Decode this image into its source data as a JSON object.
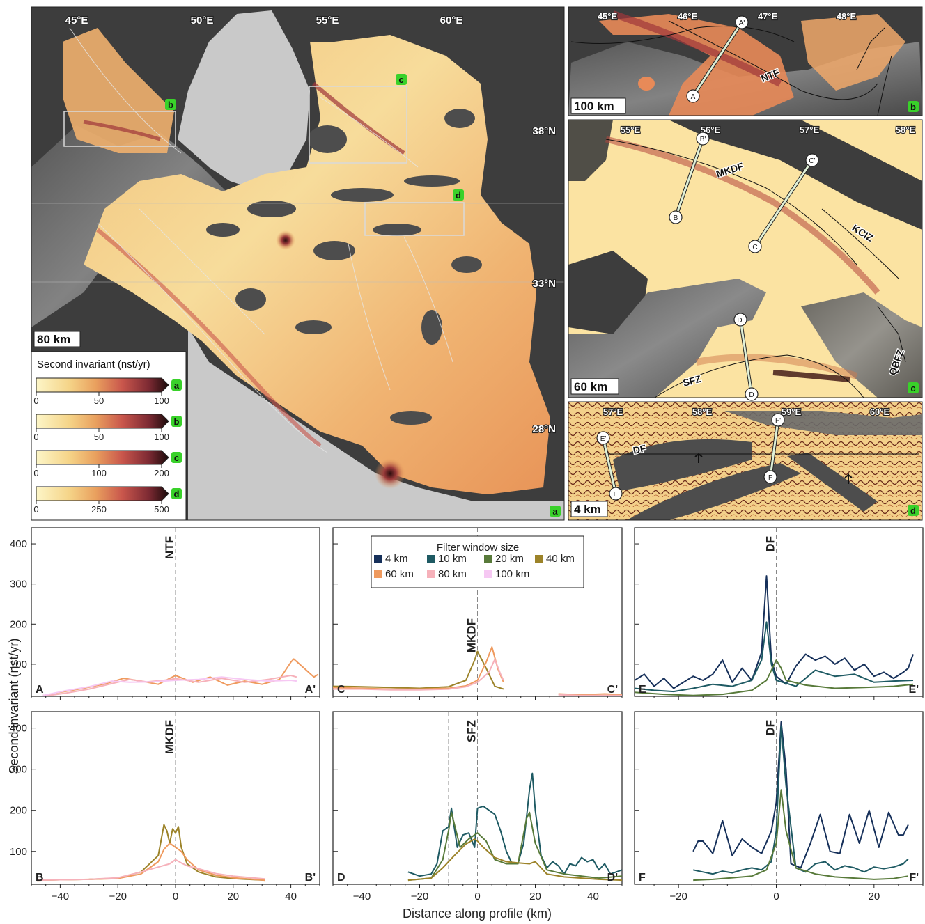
{
  "maps": {
    "a": {
      "lon_labels": [
        "45°E",
        "50°E",
        "55°E",
        "60°E"
      ],
      "lat_labels": [
        "38°N",
        "33°N",
        "28°N"
      ],
      "scale": "80 km",
      "tag": "a",
      "box_tags": [
        "b",
        "c",
        "d"
      ]
    },
    "b": {
      "lon_labels": [
        "45°E",
        "46°E",
        "47°E",
        "48°E"
      ],
      "faults": [
        "NTF"
      ],
      "profile_ends": [
        "A",
        "A'"
      ],
      "scale": "100 km",
      "tag": "b"
    },
    "c": {
      "lon_labels": [
        "55°E",
        "56°E",
        "57°E",
        "58°E"
      ],
      "faults": [
        "MKDF",
        "KCIZ",
        "SFZ",
        "QBFZ"
      ],
      "profile_ends": [
        "B",
        "B'",
        "C",
        "C'",
        "D",
        "D'"
      ],
      "scale": "60 km",
      "tag": "c"
    },
    "d": {
      "lon_labels": [
        "57°E",
        "58°E",
        "59°E",
        "60°E"
      ],
      "faults": [
        "DF"
      ],
      "profile_ends": [
        "E",
        "E'",
        "F",
        "F'"
      ],
      "scale": "4 km",
      "tag": "d"
    }
  },
  "colorbars": {
    "title": "Second invariant (nst/yr)",
    "bars": [
      {
        "tag": "a",
        "ticks": [
          "0",
          "50",
          "100"
        ],
        "max": 100
      },
      {
        "tag": "b",
        "ticks": [
          "0",
          "50",
          "100"
        ],
        "max": 100
      },
      {
        "tag": "c",
        "ticks": [
          "0",
          "100",
          "200"
        ],
        "max": 200
      },
      {
        "tag": "d",
        "ticks": [
          "0",
          "250",
          "500"
        ],
        "max": 500
      }
    ],
    "colors": [
      "#fdf6c8",
      "#f5d488",
      "#e9a05e",
      "#c9564c",
      "#7d2a33",
      "#1a0a0a"
    ]
  },
  "legend": {
    "title": "Filter window size",
    "entries": [
      {
        "label": "4 km",
        "color": "#16305a"
      },
      {
        "label": "10 km",
        "color": "#1e5a63"
      },
      {
        "label": "20 km",
        "color": "#587a3a"
      },
      {
        "label": "40 km",
        "color": "#9c8329"
      },
      {
        "label": "60 km",
        "color": "#ef9a5e"
      },
      {
        "label": "80 km",
        "color": "#f6b1ba"
      },
      {
        "label": "100 km",
        "color": "#f6c8f3"
      }
    ]
  },
  "y_axis_label": "Second invariant (nst/yr)",
  "x_axis_label": "Distance along profile (km)",
  "chart_data": [
    {
      "type": "line",
      "panel": "A-A'",
      "fault": "NTF",
      "start_label": "A",
      "end_label": "A'",
      "xlim": [
        -50,
        50
      ],
      "ylim": [
        20,
        440
      ],
      "xticks": [
        -40,
        -20,
        0,
        20,
        40
      ],
      "yticks": [
        100,
        200,
        300,
        400
      ],
      "fault_lines": [
        0
      ],
      "series": [
        {
          "color": "#ef9a5e",
          "x": [
            -46,
            -40,
            -32,
            -24,
            -18,
            -12,
            -6,
            0,
            6,
            12,
            18,
            24,
            30,
            36,
            40,
            41,
            48,
            49.5
          ],
          "y": [
            22,
            30,
            40,
            52,
            65,
            58,
            50,
            72,
            55,
            68,
            48,
            58,
            50,
            62,
            105,
            113,
            68,
            75
          ]
        },
        {
          "color": "#f6b1ba",
          "x": [
            -46,
            -38,
            -30,
            -22,
            -16,
            -10,
            -4,
            0,
            8,
            16,
            24,
            32,
            40,
            42
          ],
          "y": [
            20,
            28,
            38,
            52,
            62,
            56,
            60,
            64,
            55,
            65,
            55,
            62,
            72,
            68
          ]
        },
        {
          "color": "#f6c8f3",
          "x": [
            -46,
            -38,
            -30,
            -22,
            -16,
            -8,
            0,
            8,
            16,
            24,
            32,
            40,
            42
          ],
          "y": [
            22,
            34,
            44,
            58,
            55,
            56,
            60,
            62,
            68,
            62,
            58,
            60,
            58
          ]
        }
      ]
    },
    {
      "type": "line",
      "panel": "C-C'",
      "fault": "MKDF",
      "start_label": "C",
      "end_label": "C'",
      "xlim": [
        -50,
        50
      ],
      "ylim": [
        20,
        440
      ],
      "xticks": [
        -40,
        -20,
        0,
        20,
        40
      ],
      "yticks": [
        100,
        200,
        300,
        400
      ],
      "fault_lines": [
        0
      ],
      "series": [
        {
          "color": "#9c8329",
          "x": [
            -50,
            -40,
            -30,
            -20,
            -10,
            -4,
            -1,
            0,
            3,
            6,
            9
          ],
          "y": [
            45,
            44,
            42,
            40,
            44,
            60,
            110,
            132,
            90,
            45,
            38
          ]
        },
        {
          "color": "#ef9a5e",
          "x": [
            -50,
            -40,
            -30,
            -20,
            -10,
            -4,
            0,
            3,
            5,
            7,
            9
          ],
          "y": [
            42,
            40,
            38,
            38,
            40,
            46,
            60,
            105,
            143,
            90,
            55
          ]
        },
        {
          "color": "#f6b1ba",
          "x": [
            -50,
            -40,
            -30,
            -20,
            -10,
            -4,
            0,
            4,
            6,
            8,
            9
          ],
          "y": [
            38,
            38,
            36,
            36,
            38,
            44,
            55,
            80,
            112,
            75,
            60
          ]
        },
        {
          "color": "#ef9a5e",
          "x": [
            28,
            36,
            44,
            50
          ],
          "y": [
            26,
            24,
            26,
            24
          ]
        },
        {
          "color": "#f6b1ba",
          "x": [
            28,
            36,
            44,
            50
          ],
          "y": [
            24,
            22,
            22,
            22
          ]
        }
      ]
    },
    {
      "type": "line",
      "panel": "E-E'",
      "fault": "DF",
      "start_label": "E",
      "end_label": "E'",
      "xlim": [
        -29,
        30
      ],
      "ylim": [
        20,
        440
      ],
      "xticks": [
        -20,
        0,
        20
      ],
      "yticks": [
        100,
        200,
        300,
        400
      ],
      "fault_lines": [
        0
      ],
      "series": [
        {
          "color": "#16305a",
          "x": [
            -29,
            -27,
            -25,
            -23,
            -21,
            -19,
            -17,
            -15,
            -13,
            -11,
            -9,
            -7,
            -5,
            -3,
            -2,
            -1,
            0,
            2,
            4,
            6,
            8,
            10,
            12,
            14,
            16,
            18,
            20,
            22,
            24,
            26,
            27,
            28
          ],
          "y": [
            60,
            75,
            45,
            65,
            40,
            55,
            70,
            60,
            75,
            110,
            55,
            90,
            60,
            130,
            320,
            110,
            70,
            50,
            95,
            125,
            110,
            120,
            100,
            115,
            85,
            100,
            70,
            80,
            65,
            80,
            90,
            125
          ]
        },
        {
          "color": "#1e5a63",
          "x": [
            -29,
            -25,
            -21,
            -17,
            -13,
            -9,
            -5,
            -3,
            -2,
            -1,
            0,
            4,
            8,
            12,
            16,
            20,
            24,
            28
          ],
          "y": [
            40,
            35,
            32,
            40,
            50,
            45,
            60,
            110,
            205,
            100,
            60,
            45,
            85,
            70,
            75,
            55,
            58,
            60
          ]
        },
        {
          "color": "#587a3a",
          "x": [
            -29,
            -23,
            -17,
            -11,
            -5,
            -2,
            0,
            1,
            2,
            6,
            12,
            18,
            24,
            28
          ],
          "y": [
            30,
            25,
            22,
            25,
            35,
            60,
            110,
            90,
            60,
            48,
            40,
            42,
            45,
            50
          ]
        }
      ]
    },
    {
      "type": "line",
      "panel": "B-B'",
      "fault": "MKDF",
      "start_label": "B",
      "end_label": "B'",
      "xlim": [
        -50,
        50
      ],
      "ylim": [
        20,
        440
      ],
      "xticks": [
        -40,
        -20,
        0,
        20,
        40
      ],
      "yticks": [
        100,
        200,
        300,
        400
      ],
      "fault_lines": [
        0
      ],
      "series": [
        {
          "color": "#9c8329",
          "x": [
            -48,
            -40,
            -30,
            -20,
            -12,
            -6,
            -4,
            -3,
            -2,
            -1,
            0,
            1,
            2,
            4,
            8,
            14,
            20,
            31
          ],
          "y": [
            30,
            31,
            32,
            35,
            50,
            90,
            165,
            150,
            120,
            155,
            145,
            160,
            110,
            70,
            50,
            38,
            34,
            30
          ]
        },
        {
          "color": "#ef9a5e",
          "x": [
            -48,
            -40,
            -30,
            -20,
            -12,
            -6,
            -4,
            -2,
            0,
            2,
            4,
            8,
            14,
            20,
            31
          ],
          "y": [
            30,
            31,
            32,
            34,
            45,
            75,
            105,
            120,
            110,
            100,
            80,
            55,
            42,
            36,
            30
          ]
        },
        {
          "color": "#f6b1ba",
          "x": [
            -48,
            -40,
            -30,
            -20,
            -12,
            -6,
            -2,
            0,
            2,
            4,
            8,
            14,
            20,
            31
          ],
          "y": [
            30,
            31,
            32,
            36,
            50,
            62,
            70,
            80,
            72,
            65,
            58,
            46,
            40,
            33
          ]
        }
      ]
    },
    {
      "type": "line",
      "panel": "D-D'",
      "fault": "SFZ",
      "start_label": "D",
      "end_label": "D'",
      "xlim": [
        -50,
        50
      ],
      "ylim": [
        20,
        440
      ],
      "xticks": [
        -40,
        -20,
        0,
        20,
        40
      ],
      "yticks": [
        100,
        200,
        300,
        400
      ],
      "fault_lines": [
        -10,
        0
      ],
      "series": [
        {
          "color": "#1e5a63",
          "x": [
            -24,
            -20,
            -16,
            -14,
            -12,
            -10,
            -9,
            -7,
            -5,
            -3,
            -1,
            0,
            2,
            4,
            6,
            8,
            10,
            12,
            14,
            16,
            18,
            19,
            20,
            22,
            24,
            26,
            28,
            30,
            32,
            34,
            36,
            38,
            40,
            42,
            44,
            46,
            48,
            50
          ],
          "y": [
            50,
            40,
            45,
            70,
            150,
            160,
            205,
            110,
            140,
            145,
            110,
            205,
            210,
            200,
            190,
            150,
            100,
            70,
            70,
            120,
            250,
            290,
            200,
            90,
            60,
            75,
            65,
            45,
            70,
            65,
            85,
            75,
            80,
            55,
            70,
            45,
            50,
            55
          ]
        },
        {
          "color": "#587a3a",
          "x": [
            -24,
            -16,
            -12,
            -10,
            -9,
            -6,
            -3,
            0,
            3,
            6,
            10,
            14,
            17,
            18,
            20,
            24,
            30,
            36,
            42,
            50
          ],
          "y": [
            30,
            35,
            80,
            150,
            195,
            110,
            130,
            145,
            125,
            80,
            70,
            70,
            180,
            195,
            120,
            55,
            45,
            40,
            35,
            40
          ]
        },
        {
          "color": "#9c8329",
          "x": [
            -24,
            -16,
            -12,
            -8,
            -4,
            -1,
            0,
            2,
            6,
            10,
            14,
            18,
            20,
            24,
            30,
            36,
            42,
            50
          ],
          "y": [
            30,
            35,
            60,
            90,
            118,
            130,
            125,
            110,
            85,
            75,
            72,
            70,
            75,
            45,
            38,
            35,
            32,
            30
          ]
        }
      ]
    },
    {
      "type": "line",
      "panel": "F-F'",
      "fault": "DF",
      "start_label": "F",
      "end_label": "F'",
      "xlim": [
        -29,
        30
      ],
      "ylim": [
        20,
        440
      ],
      "xticks": [
        -20,
        0,
        20
      ],
      "yticks": [
        100,
        200,
        300,
        400
      ],
      "fault_lines": [
        0
      ],
      "series": [
        {
          "color": "#16305a",
          "x": [
            -17,
            -16,
            -15,
            -13,
            -11,
            -9,
            -7,
            -5,
            -3,
            -1,
            0,
            1,
            2,
            3,
            5,
            7,
            9,
            11,
            13,
            15,
            17,
            19,
            21,
            23,
            25,
            26,
            27
          ],
          "y": [
            100,
            125,
            125,
            95,
            175,
            90,
            130,
            110,
            95,
            150,
            220,
            415,
            300,
            70,
            60,
            120,
            190,
            100,
            95,
            190,
            120,
            200,
            110,
            195,
            140,
            140,
            165
          ]
        },
        {
          "color": "#1e5a63",
          "x": [
            -17,
            -15,
            -13,
            -11,
            -9,
            -7,
            -5,
            -3,
            -1,
            0,
            1,
            2,
            4,
            6,
            8,
            10,
            12,
            14,
            16,
            18,
            20,
            22,
            24,
            26,
            27
          ],
          "y": [
            55,
            50,
            45,
            52,
            48,
            55,
            60,
            55,
            75,
            150,
            405,
            260,
            60,
            50,
            70,
            75,
            55,
            65,
            60,
            50,
            62,
            58,
            62,
            70,
            82
          ]
        },
        {
          "color": "#587a3a",
          "x": [
            -17,
            -13,
            -9,
            -5,
            -2,
            0,
            1,
            2,
            4,
            8,
            12,
            16,
            20,
            24,
            27
          ],
          "y": [
            30,
            32,
            36,
            40,
            55,
            120,
            250,
            150,
            60,
            45,
            38,
            35,
            32,
            34,
            40
          ]
        }
      ]
    }
  ]
}
